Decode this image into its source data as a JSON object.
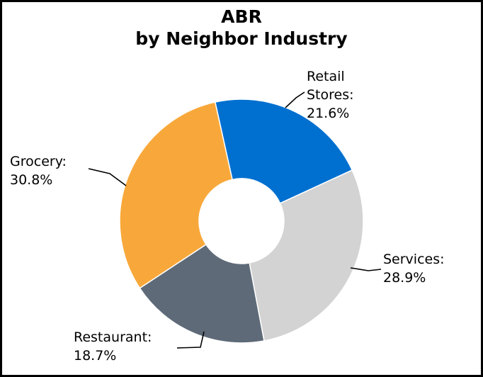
{
  "chart_data": {
    "type": "donut",
    "title_lines": [
      "ABR",
      "by Neighbor Industry"
    ],
    "slices": [
      {
        "name": "Retail Stores",
        "label_lines": [
          "Retail",
          "Stores:",
          "21.6%"
        ],
        "value": 21.6,
        "color": "#0070d0"
      },
      {
        "name": "Services",
        "label_lines": [
          "Services:",
          "28.9%"
        ],
        "value": 28.9,
        "color": "#d3d3d3"
      },
      {
        "name": "Restaurant",
        "label_lines": [
          "Restaurant:",
          "18.7%"
        ],
        "value": 18.7,
        "color": "#5e6a78"
      },
      {
        "name": "Grocery",
        "label_lines": [
          "Grocery:",
          "30.8%"
        ],
        "value": 30.8,
        "color": "#f8a83a"
      }
    ]
  }
}
